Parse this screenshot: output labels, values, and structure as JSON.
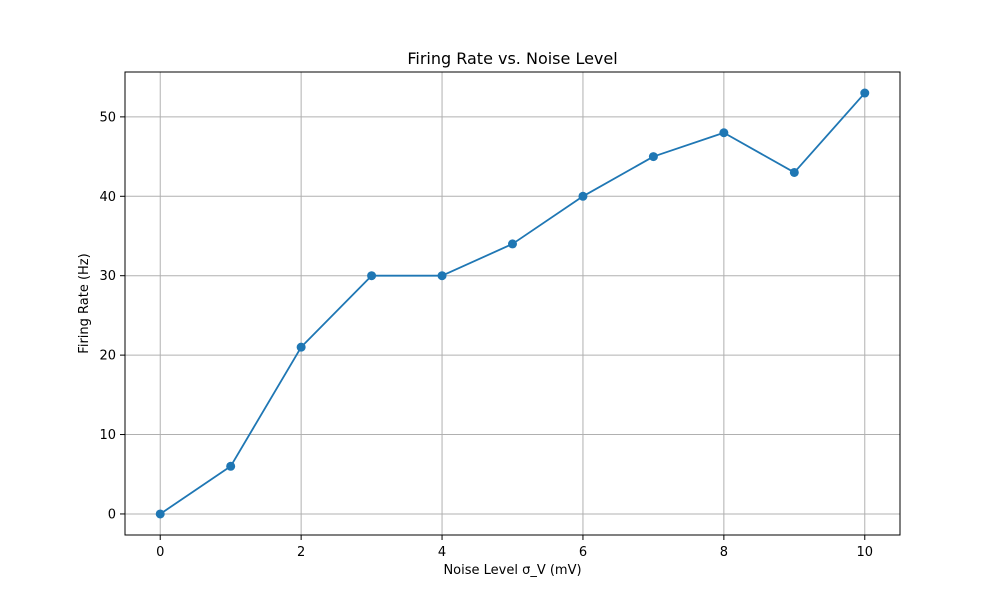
{
  "chart_data": {
    "type": "line",
    "title": "Firing Rate vs. Noise Level",
    "xlabel": "Noise Level σ_V (mV)",
    "ylabel": "Firing Rate (Hz)",
    "x": [
      0,
      1,
      2,
      3,
      4,
      5,
      6,
      7,
      8,
      9,
      10
    ],
    "series": [
      {
        "values": [
          0,
          6,
          21,
          30,
          30,
          34,
          40,
          45,
          48,
          43,
          53
        ]
      }
    ],
    "xlim": [
      -0.5,
      10.5
    ],
    "ylim": [
      -2.65,
      55.65
    ],
    "xticks": [
      0,
      2,
      4,
      6,
      8,
      10
    ],
    "yticks": [
      0,
      10,
      20,
      30,
      40,
      50
    ],
    "grid": true,
    "marker": "circle",
    "line_color": "#1f77b4",
    "grid_color": "#b0b0b0"
  }
}
